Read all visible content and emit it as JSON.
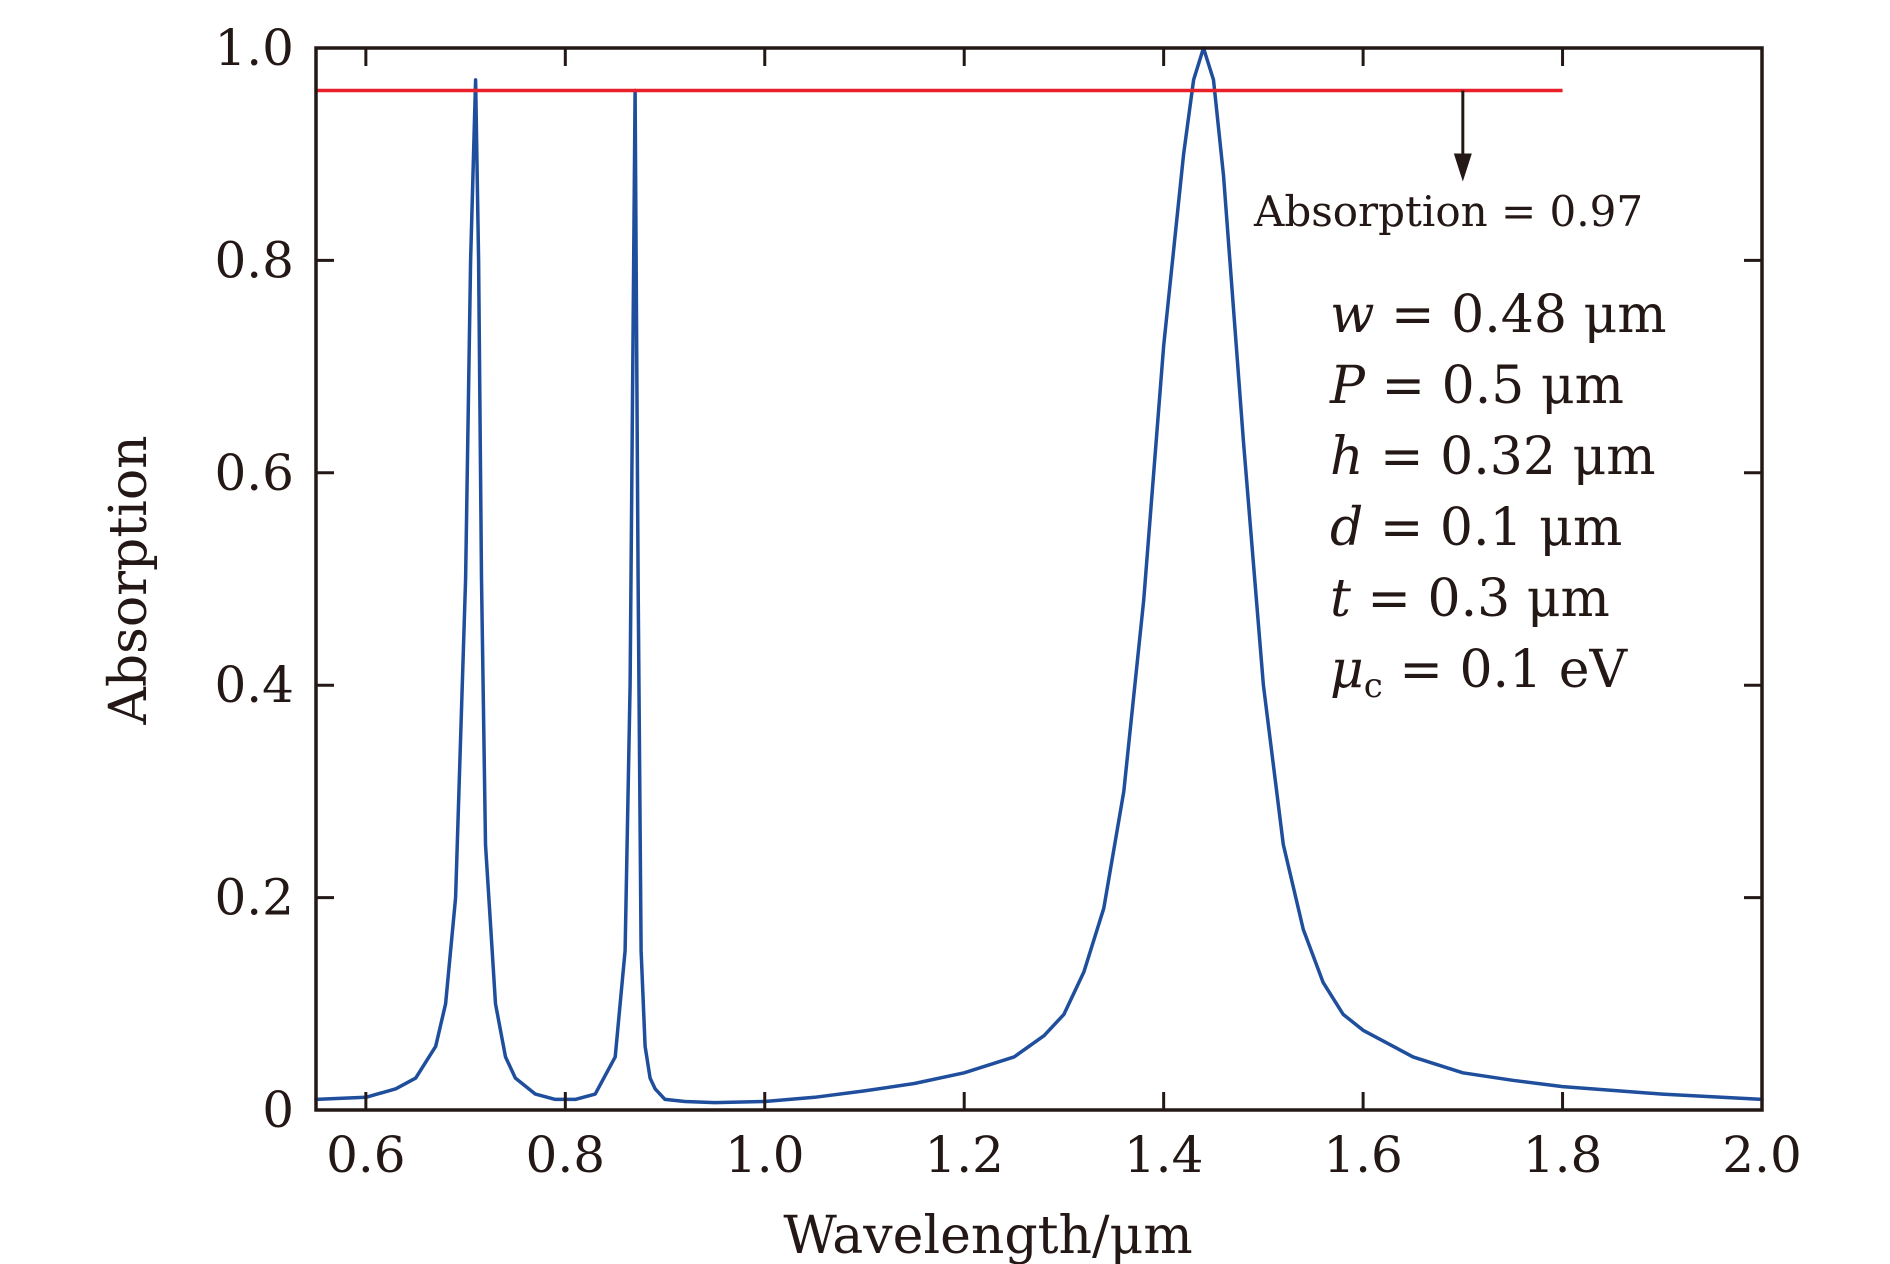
{
  "chart_data": {
    "type": "line",
    "xlabel": "Wavelength/μm",
    "ylabel": "Absorption",
    "xlim": [
      0.55,
      2.0
    ],
    "ylim": [
      0,
      1.0
    ],
    "xticks": [
      0.6,
      0.8,
      1.0,
      1.2,
      1.4,
      1.6,
      1.8,
      2.0
    ],
    "xtick_labels": [
      "0.6",
      "0.8",
      "1.0",
      "1.2",
      "1.4",
      "1.6",
      "1.8",
      "2.0"
    ],
    "yticks": [
      0,
      0.2,
      0.4,
      0.6,
      0.8,
      1.0
    ],
    "ytick_labels": [
      "0",
      "0.2",
      "0.4",
      "0.6",
      "0.8",
      "1.0"
    ],
    "grid": false,
    "legend": "none",
    "series": [
      {
        "color": "#1f4e9c",
        "x": [
          0.55,
          0.6,
          0.63,
          0.65,
          0.67,
          0.68,
          0.69,
          0.7,
          0.705,
          0.71,
          0.713,
          0.716,
          0.72,
          0.73,
          0.74,
          0.75,
          0.77,
          0.79,
          0.81,
          0.83,
          0.85,
          0.86,
          0.865,
          0.87,
          0.873,
          0.876,
          0.88,
          0.885,
          0.89,
          0.9,
          0.92,
          0.95,
          1.0,
          1.05,
          1.1,
          1.15,
          1.2,
          1.25,
          1.28,
          1.3,
          1.32,
          1.34,
          1.36,
          1.38,
          1.4,
          1.42,
          1.43,
          1.44,
          1.45,
          1.46,
          1.48,
          1.5,
          1.52,
          1.54,
          1.56,
          1.58,
          1.6,
          1.65,
          1.7,
          1.75,
          1.8,
          1.9,
          2.0
        ],
        "y": [
          0.01,
          0.012,
          0.02,
          0.03,
          0.06,
          0.1,
          0.2,
          0.5,
          0.8,
          0.97,
          0.8,
          0.5,
          0.25,
          0.1,
          0.05,
          0.03,
          0.015,
          0.01,
          0.01,
          0.015,
          0.05,
          0.15,
          0.4,
          0.96,
          0.5,
          0.15,
          0.06,
          0.03,
          0.02,
          0.01,
          0.008,
          0.007,
          0.008,
          0.012,
          0.018,
          0.025,
          0.035,
          0.05,
          0.07,
          0.09,
          0.13,
          0.19,
          0.3,
          0.48,
          0.72,
          0.9,
          0.97,
          1.0,
          0.97,
          0.88,
          0.63,
          0.4,
          0.25,
          0.17,
          0.12,
          0.09,
          0.075,
          0.05,
          0.035,
          0.028,
          0.022,
          0.015,
          0.01
        ]
      }
    ],
    "reference_line": {
      "y": 0.96,
      "x_range": [
        0.55,
        1.8
      ],
      "color": "#e8202a"
    },
    "arrow": {
      "x": 1.7,
      "y_from": 0.96,
      "y_to": 0.88
    },
    "annotations": {
      "absorption_note": "Absorption = 0.97",
      "params": [
        {
          "var": "w",
          "rest": " = 0.48 μm"
        },
        {
          "var": "P",
          "rest": " = 0.5 μm"
        },
        {
          "var": "h",
          "rest": " = 0.32 μm"
        },
        {
          "var": "d",
          "rest": " = 0.1 μm"
        },
        {
          "var": "t",
          "rest": " = 0.3 μm"
        },
        {
          "var": "μ",
          "sub": "c",
          "rest": " = 0.1 eV"
        }
      ]
    }
  }
}
